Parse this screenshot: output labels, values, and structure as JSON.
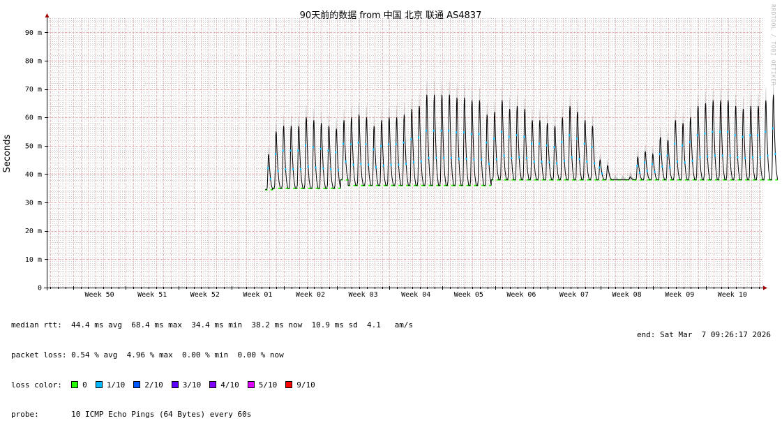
{
  "chart_data": {
    "type": "line",
    "title": "90天前的数据 from  中国 北京 联通 AS4837",
    "ylabel": "Seconds",
    "xlabel": "",
    "ylim": [
      0,
      95
    ],
    "y_ticks": [
      {
        "value": 0,
        "label": "0"
      },
      {
        "value": 10,
        "label": "10 m"
      },
      {
        "value": 20,
        "label": "20 m"
      },
      {
        "value": 30,
        "label": "30 m"
      },
      {
        "value": 40,
        "label": "40 m"
      },
      {
        "value": 50,
        "label": "50 m"
      },
      {
        "value": 60,
        "label": "60 m"
      },
      {
        "value": 70,
        "label": "70 m"
      },
      {
        "value": 80,
        "label": "80 m"
      },
      {
        "value": 90,
        "label": "90 m"
      }
    ],
    "x_unit": "day offset from start of Week 50",
    "x_range": [
      -3.5,
      91.5
    ],
    "x_ticks": [
      {
        "label": "Week 50",
        "value": 0
      },
      {
        "label": "Week 51",
        "value": 7
      },
      {
        "label": "Week 52",
        "value": 14
      },
      {
        "label": "Week 01",
        "value": 21
      },
      {
        "label": "Week 02",
        "value": 28
      },
      {
        "label": "Week 03",
        "value": 35
      },
      {
        "label": "Week 04",
        "value": 42
      },
      {
        "label": "Week 05",
        "value": 49
      },
      {
        "label": "Week 06",
        "value": 56
      },
      {
        "label": "Week 07",
        "value": 63
      },
      {
        "label": "Week 08",
        "value": 70
      },
      {
        "label": "Week 09",
        "value": 77
      },
      {
        "label": "Week 10",
        "value": 84
      }
    ],
    "grid": true,
    "data_start": 25.5,
    "series": [
      {
        "daily": [
          {
            "base": 34.5,
            "peak": 47
          },
          {
            "base": 35,
            "peak": 55
          },
          {
            "base": 35,
            "peak": 57
          },
          {
            "base": 35,
            "peak": 57
          },
          {
            "base": 35,
            "peak": 57
          },
          {
            "base": 35,
            "peak": 60
          },
          {
            "base": 35,
            "peak": 59
          },
          {
            "base": 35,
            "peak": 58
          },
          {
            "base": 35,
            "peak": 57
          },
          {
            "base": 35,
            "peak": 56
          },
          {
            "base": 38,
            "peak": 59
          },
          {
            "base": 36,
            "peak": 60
          },
          {
            "base": 36,
            "peak": 61
          },
          {
            "base": 36,
            "peak": 60
          },
          {
            "base": 36,
            "peak": 57
          },
          {
            "base": 36,
            "peak": 59
          },
          {
            "base": 36,
            "peak": 60
          },
          {
            "base": 36,
            "peak": 60
          },
          {
            "base": 36,
            "peak": 61
          },
          {
            "base": 36,
            "peak": 63
          },
          {
            "base": 36,
            "peak": 64
          },
          {
            "base": 36,
            "peak": 68
          },
          {
            "base": 36,
            "peak": 68
          },
          {
            "base": 36,
            "peak": 68
          },
          {
            "base": 36,
            "peak": 68
          },
          {
            "base": 36,
            "peak": 67
          },
          {
            "base": 36,
            "peak": 67
          },
          {
            "base": 36,
            "peak": 66
          },
          {
            "base": 36,
            "peak": 66
          },
          {
            "base": 36,
            "peak": 61
          },
          {
            "base": 38,
            "peak": 62
          },
          {
            "base": 38,
            "peak": 66
          },
          {
            "base": 38,
            "peak": 63
          },
          {
            "base": 38,
            "peak": 64
          },
          {
            "base": 38,
            "peak": 63
          },
          {
            "base": 38,
            "peak": 59
          },
          {
            "base": 38,
            "peak": 59
          },
          {
            "base": 38,
            "peak": 58
          },
          {
            "base": 38,
            "peak": 57
          },
          {
            "base": 38,
            "peak": 60
          },
          {
            "base": 38,
            "peak": 64
          },
          {
            "base": 38,
            "peak": 62
          },
          {
            "base": 38,
            "peak": 59
          },
          {
            "base": 38,
            "peak": 57
          },
          {
            "base": 38,
            "peak": 45
          },
          {
            "base": 38,
            "peak": 43
          },
          {
            "base": 38,
            "peak": 38
          },
          {
            "base": 38,
            "peak": 38
          },
          {
            "base": 38,
            "peak": 39
          },
          {
            "base": 38,
            "peak": 46
          },
          {
            "base": 38,
            "peak": 48
          },
          {
            "base": 38,
            "peak": 47
          },
          {
            "base": 38,
            "peak": 53
          },
          {
            "base": 38,
            "peak": 52
          },
          {
            "base": 38,
            "peak": 59
          },
          {
            "base": 38,
            "peak": 58
          },
          {
            "base": 38,
            "peak": 60
          },
          {
            "base": 38,
            "peak": 64
          },
          {
            "base": 38,
            "peak": 65
          },
          {
            "base": 38,
            "peak": 66
          },
          {
            "base": 38,
            "peak": 66
          },
          {
            "base": 38,
            "peak": 66
          },
          {
            "base": 38,
            "peak": 64
          },
          {
            "base": 38,
            "peak": 63
          },
          {
            "base": 38,
            "peak": 64
          },
          {
            "base": 38,
            "peak": 64
          },
          {
            "base": 38,
            "peak": 66
          },
          {
            "base": 38,
            "peak": 68
          }
        ]
      }
    ]
  },
  "stats": {
    "median_label": "median rtt:",
    "median_values": "44.4 ms avg  68.4 ms max  34.4 ms min  38.2 ms now  10.9 ms sd  4.1   am/s",
    "loss_label": "packet loss:",
    "loss_values": "0.54 % avg  4.96 % max  0.00 % min  0.00 % now",
    "loss_color_label": "loss color:",
    "loss_colors": [
      {
        "label": "0",
        "color": "#26ff00"
      },
      {
        "label": "1/10",
        "color": "#00b8ff"
      },
      {
        "label": "2/10",
        "color": "#0059ff"
      },
      {
        "label": "3/10",
        "color": "#5e00ff"
      },
      {
        "label": "4/10",
        "color": "#7e00ff"
      },
      {
        "label": "5/10",
        "color": "#dd00ff"
      },
      {
        "label": "9/10",
        "color": "#ff0000"
      }
    ],
    "probe_label": "probe:",
    "probe_value": "10 ICMP Echo Pings (64 Bytes) every 60s",
    "end_text": "end: Sat Mar  7 09:26:17 2026"
  },
  "watermark": "RRDTOOL / TOBI OETIKER",
  "colors": {
    "major_grid": "#e8a0a0",
    "minor_grid": "#d0d0d0",
    "axis": "#000000",
    "arrow": "#a00000",
    "smoke": "#6a6a6a",
    "median_line": "#000000"
  }
}
